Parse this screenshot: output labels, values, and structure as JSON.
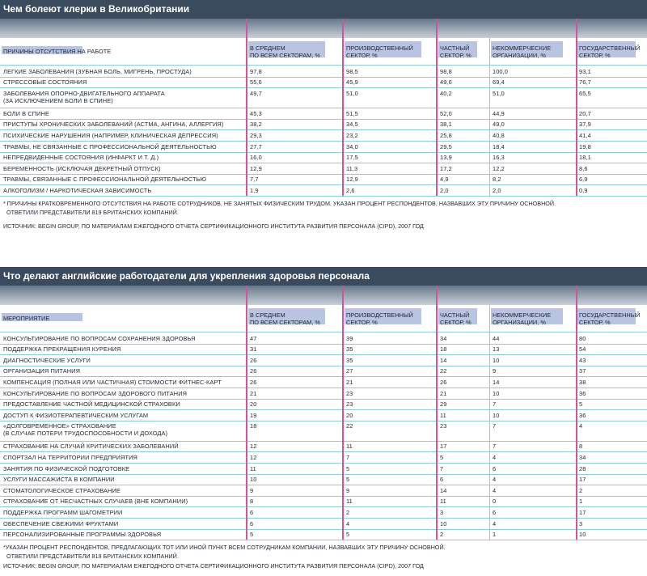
{
  "sections": [
    {
      "title": "Чем болеют клерки в Великобритании",
      "columns": [
        "ПРИЧИНЫ ОТСУТСТВИЯ НА РАБОТЕ",
        "В СРЕДНЕМ\nПО ВСЕМ СЕКТОРАМ, %",
        "ПРОИЗВОДСТВЕННЫЙ\nСЕКТОР, %",
        "ЧАСТНЫЙ\nСЕКТОР, %",
        "НЕКОММЕРЧЕСКИЕ\nОРГАНИЗАЦИИ, %",
        "ГОСУДАРСТВЕННЫЙ\nСЕКТОР, %"
      ],
      "rows": [
        {
          "label": "ЛЕГКИЕ ЗАБОЛЕВАНИЯ (ЗУБНАЯ БОЛЬ, МИГРЕНЬ, ПРОСТУДА)",
          "values": [
            "97,8",
            "98,5",
            "98,8",
            "100,0",
            "93,1"
          ]
        },
        {
          "label": "СТРЕССОВЫЕ СОСТОЯНИЯ",
          "values": [
            "55,6",
            "45,9",
            "49,6",
            "69,4",
            "76,7"
          ]
        },
        {
          "label": "ЗАБОЛЕВАНИЯ ОПОРНО-ДВИГАТЕЛЬНОГО АППАРАТА\n(ЗА ИСКЛЮЧЕНИЕМ БОЛИ В СПИНЕ)",
          "values": [
            "49,7",
            "51,0",
            "40,2",
            "51,0",
            "65,5"
          ]
        },
        {
          "label": "БОЛИ В СПИНЕ",
          "values": [
            "45,3",
            "51,5",
            "52,0",
            "44,9",
            "20,7"
          ]
        },
        {
          "label": "ПРИСТУПЫ ХРОНИЧЕСКИХ ЗАБОЛЕВАНИЙ (АСТМА, АНГИНА, АЛЛЕРГИЯ)",
          "values": [
            "38,2",
            "34,5",
            "38,1",
            "49,0",
            "37,9"
          ]
        },
        {
          "label": "ПСИХИЧЕСКИЕ НАРУШЕНИЯ (НАПРИМЕР, КЛИНИЧЕСКАЯ ДЕПРЕССИЯ)",
          "values": [
            "29,3",
            "23,2",
            "25,8",
            "40,8",
            "41,4"
          ]
        },
        {
          "label": "ТРАВМЫ, НЕ СВЯЗАННЫЕ С ПРОФЕССИОНАЛЬНОЙ ДЕЯТЕЛЬНОСТЬЮ",
          "values": [
            "27,7",
            "34,0",
            "29,5",
            "18,4",
            "19,8"
          ]
        },
        {
          "label": "НЕПРЕДВИДЕННЫЕ СОСТОЯНИЯ (ИНФАРКТ И Т. Д.)",
          "values": [
            "16,0",
            "17,5",
            "13,9",
            "16,3",
            "18,1"
          ]
        },
        {
          "label": "БЕРЕМЕННОСТЬ (ИСКЛЮЧАЯ ДЕКРЕТНЫЙ ОТПУСК)",
          "values": [
            "12,9",
            "11,3",
            "17,2",
            "12,2",
            "8,6"
          ]
        },
        {
          "label": "ТРАВМЫ, СВЯЗАННЫЕ С ПРОФЕССИОНАЛЬНОЙ ДЕЯТЕЛЬНОСТЬЮ",
          "values": [
            "7,7",
            "12,9",
            "4,9",
            "8,2",
            "6,9"
          ]
        },
        {
          "label": "АЛКОГОЛИЗМ / НАРКОТИЧЕСКАЯ ЗАВИСИМОСТЬ",
          "values": [
            "1,9",
            "2,6",
            "2,0",
            "2,0",
            "0,9"
          ]
        }
      ],
      "note": "* ПРИЧИНЫ КРАТКОВРЕМЕННОГО ОТСУТСТВИЯ НА РАБОТЕ СОТРУДНИКОВ, НЕ ЗАНЯТЫХ ФИЗИЧЕСКИМ ТРУДОМ. УКАЗАН ПРОЦЕНТ РЕСПОНДЕНТОВ, НАЗВАВШИХ ЭТУ ПРИЧИНУ ОСНОВНОЙ.\n  ОТВЕТИЛИ ПРЕДСТАВИТЕЛИ 819 БРИТАНСКИХ КОМПАНИЙ.",
      "source": "ИСТОЧНИК: BEGIN GROUP, ПО МАТЕРИАЛАМ ЕЖЕГОДНОГО ОТЧЕТА СЕРТИФИКАЦИОННОГО ИНСТИТУТА РАЗВИТИЯ ПЕРСОНАЛА (CIPD), 2007 ГОД"
    },
    {
      "title": "Что делают английские работодатели для укрепления здоровья персонала",
      "columns": [
        "МЕРОПРИЯТИЕ",
        "В СРЕДНЕМ\nПО ВСЕМ СЕКТОРАМ, %",
        "ПРОИЗВОДСТВЕННЫЙ\nСЕКТОР, %",
        "ЧАСТНЫЙ\nСЕКТОР, %",
        "НЕКОММЕРЧЕСКИЕ\nОРГАНИЗАЦИИ, %",
        "ГОСУДАРСТВЕННЫЙ\nСЕКТОР, %"
      ],
      "rows": [
        {
          "label": "КОНСУЛЬТИРОВАНИЕ ПО ВОПРОСАМ СОХРАНЕНИЯ ЗДОРОВЬЯ",
          "values": [
            "47",
            "39",
            "34",
            "44",
            "80"
          ]
        },
        {
          "label": "ПОДДЕРЖКА ПРЕКРАЩЕНИЯ КУРЕНИЯ",
          "values": [
            "31",
            "35",
            "18",
            "13",
            "54"
          ]
        },
        {
          "label": "ДИАГНОСТИЧЕСКИЕ УСЛУГИ",
          "values": [
            "26",
            "35",
            "14",
            "10",
            "43"
          ]
        },
        {
          "label": "ОРГАНИЗАЦИЯ ПИТАНИЯ",
          "values": [
            "26",
            "27",
            "22",
            "9",
            "37"
          ]
        },
        {
          "label": "КОМПЕНСАЦИЯ (ПОЛНАЯ ИЛИ ЧАСТИЧНАЯ) СТОИМОСТИ ФИТНЕС-КАРТ",
          "values": [
            "26",
            "21",
            "26",
            "14",
            "38"
          ]
        },
        {
          "label": "КОНСУЛЬТИРОВАНИЕ ПО ВОПРОСАМ ЗДОРОВОГО ПИТАНИЯ",
          "values": [
            "21",
            "23",
            "21",
            "10",
            "36"
          ]
        },
        {
          "label": "ПРЕДОСТАВЛЕНИЕ ЧАСТНОЙ МЕДИЦИНСКОЙ СТРАХОВКИ",
          "values": [
            "20",
            "23",
            "29",
            "7",
            "5"
          ]
        },
        {
          "label": "ДОСТУП К ФИЗИОТЕРАПЕВТИЧЕСКИМ УСЛУГАМ",
          "values": [
            "19",
            "20",
            "11",
            "10",
            "36"
          ]
        },
        {
          "label": "«ДОЛГОВРЕМЕННОЕ» СТРАХОВАНИЕ\n(В СЛУЧАЕ ПОТЕРИ ТРУДОСПОСОБНОСТИ И ДОХОДА)",
          "values": [
            "18",
            "22",
            "23",
            "7",
            "4"
          ]
        },
        {
          "label": "СТРАХОВАНИЕ НА СЛУЧАЙ КРИТИЧЕСКИХ ЗАБОЛЕВАНИЙ",
          "values": [
            "12",
            "11",
            "17",
            "7",
            "8"
          ]
        },
        {
          "label": "СПОРТЗАЛ НА ТЕРРИТОРИИ ПРЕДПРИЯТИЯ",
          "values": [
            "12",
            "7",
            "5",
            "4",
            "34"
          ]
        },
        {
          "label": "ЗАНЯТИЯ ПО ФИЗИЧЕСКОЙ ПОДГОТОВКЕ",
          "values": [
            "11",
            "5",
            "7",
            "6",
            "28"
          ]
        },
        {
          "label": "УСЛУГИ МАССАЖИСТА В КОМПАНИИ",
          "values": [
            "10",
            "5",
            "6",
            "4",
            "17"
          ]
        },
        {
          "label": "СТОМАТОЛОГИЧЕСКОЕ СТРАХОВАНИЕ",
          "values": [
            "9",
            "9",
            "14",
            "4",
            "2"
          ]
        },
        {
          "label": "СТРАХОВАНИЕ ОТ НЕСЧАСТНЫХ СЛУЧАЕВ (ВНЕ КОМПАНИИ)",
          "values": [
            "8",
            "11",
            "11",
            "0",
            "1"
          ]
        },
        {
          "label": "ПОДДЕРЖКА ПРОГРАММ ШАГОМЕТРИИ",
          "values": [
            "6",
            "2",
            "3",
            "6",
            "17"
          ]
        },
        {
          "label": "ОБЕСПЕЧЕНИЕ СВЕЖИМИ ФРУКТАМИ",
          "values": [
            "6",
            "4",
            "10",
            "4",
            "3"
          ]
        },
        {
          "label": "ПЕРСОНАЛИЗИРОВАННЫЕ ПРОГРАММЫ ЗДОРОВЬЯ",
          "values": [
            "5",
            "5",
            "2",
            "1",
            "10"
          ]
        }
      ],
      "note": "*УКАЗАН ПРОЦЕНТ РЕСПОНДЕНТОВ, ПРЕДЛАГАЮЩИХ ТОТ ИЛИ ИНОЙ ПУНКТ ВСЕМ СОТРУДНИКАМ КОМПАНИИ, НАЗВАВШИХ ЭТУ ПРИЧИНУ ОСНОВНОЙ.\n  ОТВЕТИЛИ ПРЕДСТАВИТЕЛИ 819 БРИТАНСКИХ КОМПАНИЙ.",
      "source": "ИСТОЧНИК: BEGIN GROUP, ПО МАТЕРИАЛАМ ЕЖЕГОДНОГО ОТЧЕТА СЕРТИФИКАЦИОННОГО ИНСТИТУТА РАЗВИТИЯ ПЕРСОНАЛА (CIPD), 2007 ГОД"
    }
  ]
}
